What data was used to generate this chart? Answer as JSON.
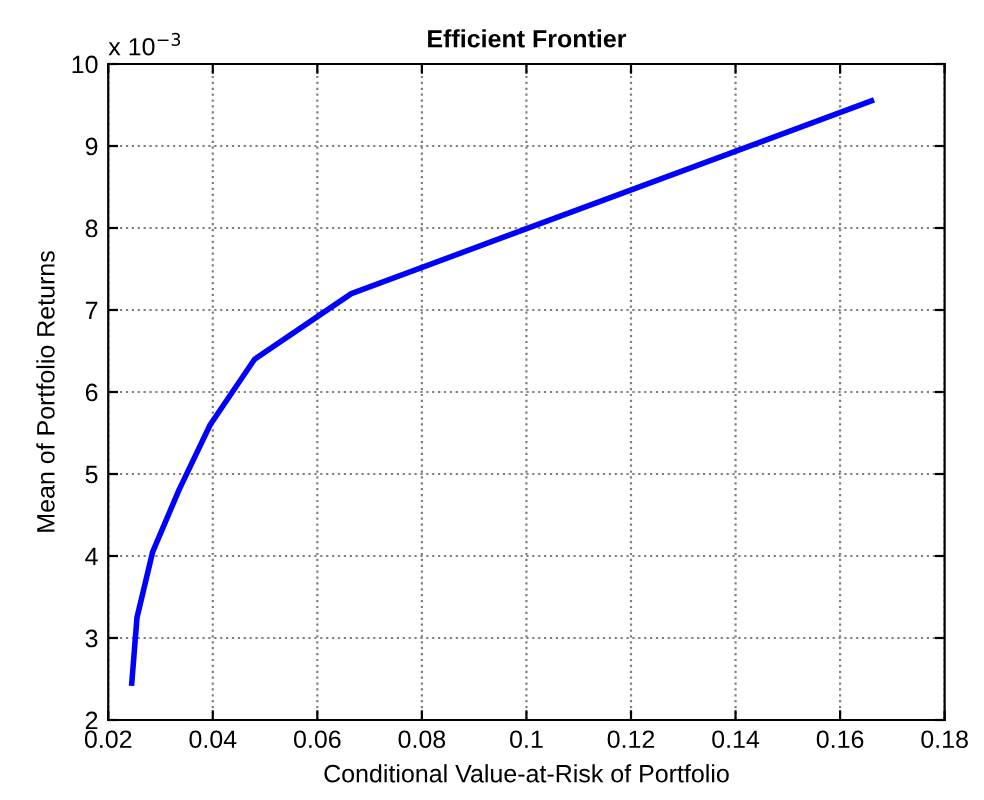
{
  "chart_data": {
    "type": "line",
    "title": "Efficient Frontier",
    "xlabel": "Conditional Value-at-Risk of Portfolio",
    "ylabel": "Mean of Portfolio Returns",
    "x": [
      0.0245,
      0.0255,
      0.0285,
      0.0335,
      0.0395,
      0.048,
      0.0665,
      0.166
    ],
    "series": [
      {
        "color": "#0000ff",
        "values": [
          2.45,
          3.25,
          4.05,
          4.8,
          5.6,
          6.4,
          7.2,
          9.55
        ]
      }
    ],
    "xlim": [
      0.02,
      0.18
    ],
    "xticks": [
      0.02,
      0.04,
      0.06,
      0.08,
      0.1,
      0.12,
      0.14,
      0.16,
      0.18
    ],
    "ylim": [
      2,
      10
    ],
    "yticks": [
      2,
      3,
      4,
      5,
      6,
      7,
      8,
      9,
      10
    ],
    "annotations": [
      "x 10$^{−3}$"
    ],
    "grid": true,
    "marker": "none",
    "line_style": "solid"
  }
}
